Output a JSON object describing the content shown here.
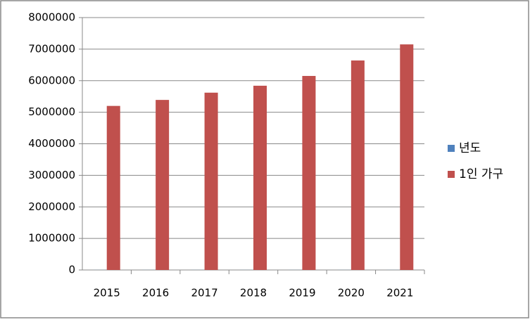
{
  "chart_data": {
    "type": "bar",
    "categories": [
      "2015",
      "2016",
      "2017",
      "2018",
      "2019",
      "2020",
      "2021"
    ],
    "series": [
      {
        "name": "년도",
        "color": "#4f81bd",
        "values": [
          2015,
          2016,
          2017,
          2018,
          2019,
          2020,
          2021
        ]
      },
      {
        "name": "1인 가구",
        "color": "#c0504d",
        "values": [
          5200000,
          5390000,
          5620000,
          5840000,
          6150000,
          6640000,
          7150000
        ]
      }
    ],
    "ylim": [
      0,
      8000000
    ],
    "yticks": [
      0,
      1000000,
      2000000,
      3000000,
      4000000,
      5000000,
      6000000,
      7000000,
      8000000
    ],
    "grid": true,
    "legend": "right"
  }
}
